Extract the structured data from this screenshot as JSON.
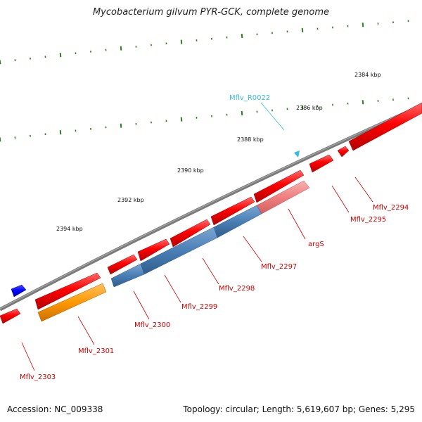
{
  "title": "Mycobacterium gilvum PYR-GCK, complete genome",
  "footer": {
    "accession": "Accession: NC_009338",
    "summary": "Topology: circular; Length: 5,619,607 bp; Genes: 5,295"
  },
  "colors": {
    "backbone": "#808080",
    "tick": "#2e7d1e",
    "gene_red": "#ff0000",
    "gene_blue": "#4a7fb5",
    "gene_orange": "#ff9900",
    "gene_pink": "#f08080",
    "gene_dark_blue": "#0000ff",
    "rna": "#33bbdd",
    "gene_label": "#cc0000",
    "rna_label": "#33bbdd"
  },
  "kbp_labels": [
    "2384 kbp",
    "2386 kbp",
    "2388 kbp",
    "2390 kbp",
    "2392 kbp",
    "2394 kbp"
  ],
  "genes": [
    {
      "name": "Mflv_2294"
    },
    {
      "name": "Mflv_2295"
    },
    {
      "name": "argS"
    },
    {
      "name": "Mflv_2297"
    },
    {
      "name": "Mflv_2298"
    },
    {
      "name": "Mflv_2299"
    },
    {
      "name": "Mflv_2300"
    },
    {
      "name": "Mflv_2301"
    },
    {
      "name": "Mflv_2303"
    }
  ],
  "rna": {
    "name": "Mflv_R0022"
  }
}
